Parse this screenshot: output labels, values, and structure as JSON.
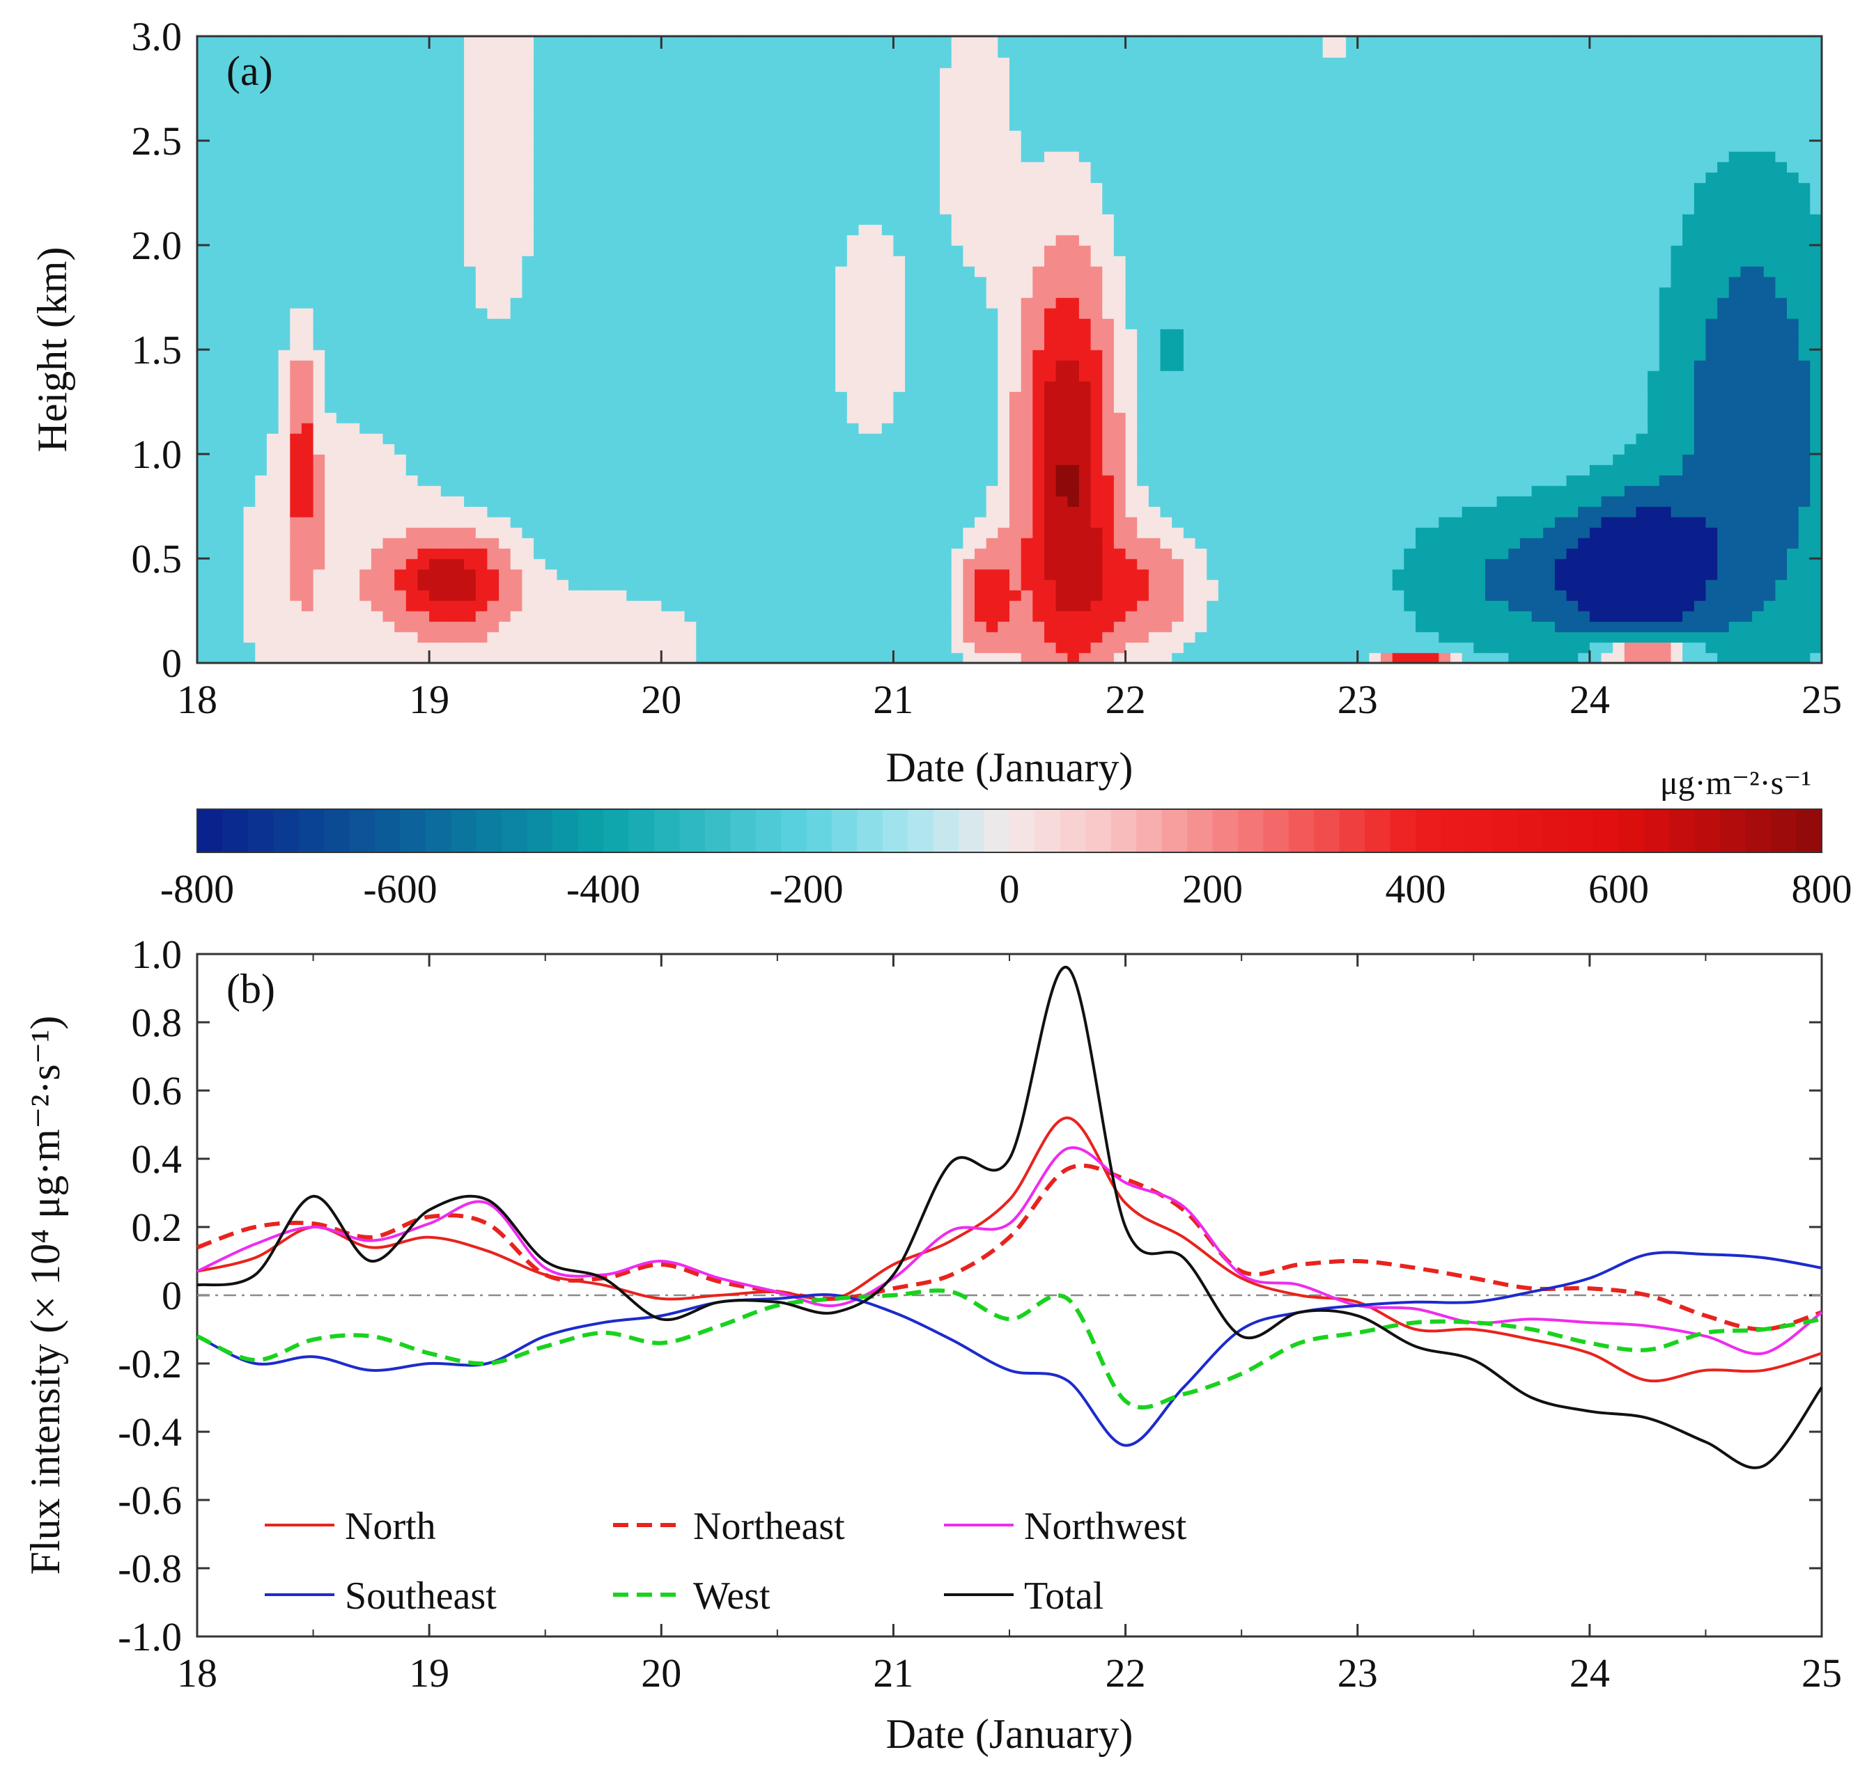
{
  "chart_data": [
    {
      "panel": "(a)",
      "type": "heatmap",
      "xlabel": "Date  (January)",
      "ylabel": "Height (km)",
      "xlim": [
        18,
        25
      ],
      "ylim": [
        0,
        3.0
      ],
      "x_ticks": [
        "18",
        "19",
        "20",
        "21",
        "22",
        "23",
        "24",
        "25"
      ],
      "y_ticks": [
        "0",
        "0.5",
        "1.0",
        "1.5",
        "2.0",
        "2.5",
        "3.0"
      ],
      "colorbar": {
        "label": "μg·m⁻²·s⁻¹",
        "range": [
          -800,
          800
        ],
        "ticks": [
          "-800",
          "-600",
          "-400",
          "-200",
          "0",
          "200",
          "400",
          "600",
          "800"
        ],
        "colors": {
          "neg_extreme": "#0a1e8c",
          "neg_strong": "#0c5f9a",
          "neg_mid": "#0aa3aa",
          "neg_weak": "#5dd3e0",
          "near_zero": "#f6e5e3",
          "pos_weak": "#f58a8a",
          "pos_mid": "#ee1d1d",
          "pos_strong": "#c41010",
          "pos_extreme": "#8e0a0a"
        }
      },
      "features": [
        {
          "desc": "near-zero (light pink) region",
          "x": [
            18.0,
            20.5
          ],
          "z_km": [
            0,
            0.8
          ],
          "value": 0
        },
        {
          "desc": "negative band",
          "x": [
            19.5,
            21.0
          ],
          "z_km": [
            0.5,
            3.0
          ],
          "value": -150
        },
        {
          "desc": "positive core",
          "x": [
            18.7,
            19.5
          ],
          "z_km": [
            0.1,
            0.75
          ],
          "value": 350
        },
        {
          "desc": "strong positive plume",
          "x": [
            21.1,
            22.4
          ],
          "z_km": [
            0,
            2.6
          ],
          "value": 700
        },
        {
          "desc": "negative plume",
          "x": [
            23.8,
            25.0
          ],
          "z_km": [
            0,
            2.5
          ],
          "value": -600
        }
      ]
    },
    {
      "panel": "(b)",
      "type": "line",
      "xlabel": "Date  (January)",
      "ylabel": "Flux intensity (× 10⁴ μg·m⁻²·s⁻¹)",
      "xlim": [
        18,
        25
      ],
      "ylim": [
        -1.0,
        1.0
      ],
      "x_ticks": [
        "18",
        "19",
        "20",
        "21",
        "22",
        "23",
        "24",
        "25"
      ],
      "y_ticks": [
        "-1.0",
        "-0.8",
        "-0.6",
        "-0.4",
        "-0.2",
        "0",
        "0.2",
        "0.4",
        "0.6",
        "0.8",
        "1.0"
      ],
      "legend": [
        "North",
        "Northeast",
        "Northwest",
        "Southeast",
        "West",
        "Total"
      ],
      "x": [
        18.0,
        18.25,
        18.5,
        18.75,
        19.0,
        19.25,
        19.5,
        19.75,
        20.0,
        20.25,
        20.5,
        20.75,
        21.0,
        21.25,
        21.5,
        21.75,
        22.0,
        22.25,
        22.5,
        22.75,
        23.0,
        23.25,
        23.5,
        23.75,
        24.0,
        24.25,
        24.5,
        24.75,
        25.0
      ],
      "series": [
        {
          "name": "North",
          "color": "#e8231e",
          "dash": "solid",
          "values": [
            0.07,
            0.11,
            0.2,
            0.14,
            0.17,
            0.13,
            0.06,
            0.03,
            -0.01,
            0.0,
            0.01,
            -0.01,
            0.09,
            0.16,
            0.28,
            0.52,
            0.27,
            0.17,
            0.05,
            0.0,
            -0.02,
            -0.1,
            -0.1,
            -0.13,
            -0.17,
            -0.25,
            -0.22,
            -0.22,
            -0.17
          ]
        },
        {
          "name": "Northeast",
          "color": "#e8231e",
          "dash": "dashed",
          "values": [
            0.14,
            0.2,
            0.21,
            0.17,
            0.23,
            0.21,
            0.06,
            0.05,
            0.09,
            0.04,
            0.01,
            -0.01,
            0.02,
            0.06,
            0.17,
            0.37,
            0.34,
            0.25,
            0.07,
            0.09,
            0.1,
            0.08,
            0.05,
            0.02,
            0.02,
            0.0,
            -0.06,
            -0.1,
            -0.05
          ]
        },
        {
          "name": "Northwest",
          "color": "#ee2cee",
          "dash": "solid",
          "values": [
            0.07,
            0.15,
            0.2,
            0.16,
            0.21,
            0.27,
            0.08,
            0.06,
            0.1,
            0.05,
            0.01,
            -0.03,
            0.05,
            0.19,
            0.21,
            0.43,
            0.33,
            0.26,
            0.06,
            0.03,
            -0.03,
            -0.04,
            -0.08,
            -0.07,
            -0.08,
            -0.09,
            -0.12,
            -0.17,
            -0.05
          ]
        },
        {
          "name": "Southeast",
          "color": "#1c2bcc",
          "dash": "solid",
          "values": [
            -0.12,
            -0.2,
            -0.18,
            -0.22,
            -0.2,
            -0.2,
            -0.12,
            -0.08,
            -0.06,
            -0.02,
            -0.01,
            0.0,
            -0.05,
            -0.13,
            -0.22,
            -0.25,
            -0.44,
            -0.27,
            -0.1,
            -0.05,
            -0.03,
            -0.02,
            -0.02,
            0.01,
            0.05,
            0.12,
            0.12,
            0.11,
            0.08
          ]
        },
        {
          "name": "West",
          "color": "#19d21d",
          "dash": "dashed",
          "values": [
            -0.12,
            -0.19,
            -0.13,
            -0.12,
            -0.17,
            -0.2,
            -0.15,
            -0.11,
            -0.14,
            -0.09,
            -0.03,
            -0.01,
            0.0,
            0.01,
            -0.07,
            -0.01,
            -0.31,
            -0.29,
            -0.23,
            -0.14,
            -0.11,
            -0.08,
            -0.08,
            -0.1,
            -0.14,
            -0.16,
            -0.11,
            -0.1,
            -0.07
          ]
        },
        {
          "name": "Total",
          "color": "#111111",
          "dash": "solid",
          "values": [
            0.03,
            0.06,
            0.29,
            0.1,
            0.25,
            0.28,
            0.1,
            0.05,
            -0.07,
            -0.02,
            -0.02,
            -0.05,
            0.06,
            0.39,
            0.4,
            0.96,
            0.2,
            0.11,
            -0.12,
            -0.05,
            -0.06,
            -0.15,
            -0.19,
            -0.3,
            -0.34,
            -0.36,
            -0.43,
            -0.5,
            -0.27
          ]
        }
      ]
    }
  ]
}
